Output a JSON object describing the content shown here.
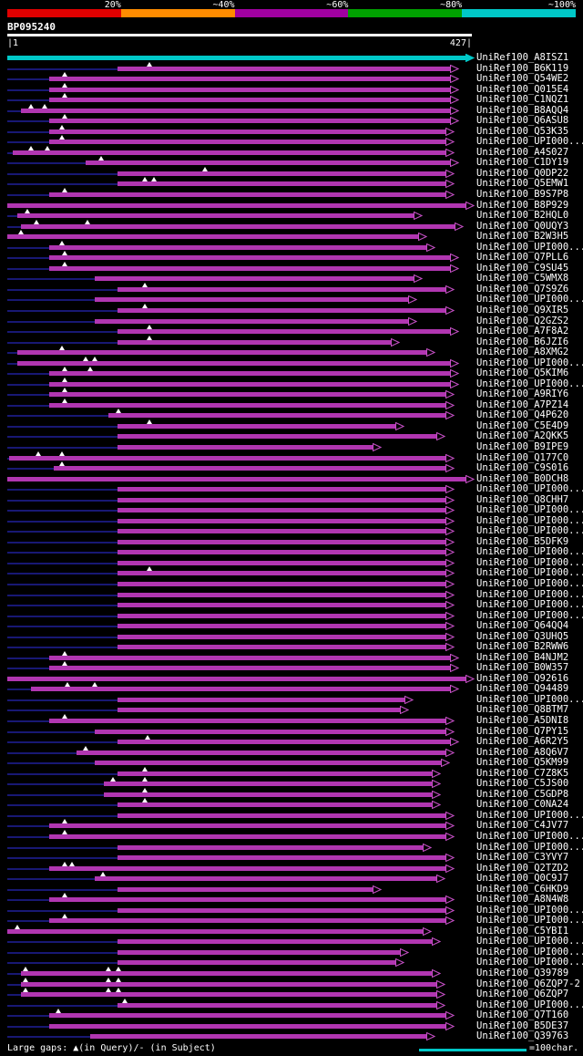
{
  "identity_scale": {
    "labels": [
      "20%",
      "~40%",
      "~60%",
      "~80%",
      "~100%"
    ],
    "colors": [
      "#e00000",
      "#ff8c00",
      "#a000a0",
      "#00a000",
      "#00c8c8"
    ]
  },
  "ruler": {
    "left": "|1",
    "right": "427|"
  },
  "footer": {
    "gaps": "Large gaps: ▲(in Query)/- (in Subject)",
    "scale": "=100char.",
    "scale_chars": 100
  },
  "colors": {
    "background": "#000000",
    "hit": "#b136b1",
    "hit_arrow_stroke": "#c44fc4",
    "query": "#00c8c8",
    "flank": "#181874",
    "text": "#ffffff"
  },
  "chart_data": {
    "type": "bar",
    "subtype": "sequence-alignment-overview",
    "title": "BP095240",
    "xlabel": "query position (characters)",
    "xlim": [
      1,
      427
    ],
    "query": {
      "label": "UniRef100_A8ISZ1",
      "start": 1,
      "end": 427
    },
    "hits": [
      {
        "label": "UniRef100_B6K119",
        "start": 103,
        "end": 413,
        "gaps": [
          133
        ]
      },
      {
        "label": "UniRef100_Q54WE2",
        "start": 40,
        "end": 413,
        "gaps": [
          54
        ]
      },
      {
        "label": "UniRef100_Q015E4",
        "start": 40,
        "end": 413,
        "gaps": [
          54
        ]
      },
      {
        "label": "UniRef100_C1NQZ1",
        "start": 40,
        "end": 413,
        "gaps": [
          54
        ]
      },
      {
        "label": "UniRef100_B8AQQ4",
        "start": 14,
        "end": 413,
        "gaps": [
          23,
          36
        ]
      },
      {
        "label": "UniRef100_Q6ASU8",
        "start": 40,
        "end": 413,
        "gaps": [
          54
        ]
      },
      {
        "label": "UniRef100_Q53K35",
        "start": 40,
        "end": 408,
        "gaps": [
          52
        ]
      },
      {
        "label": "UniRef100_UPI000...",
        "start": 40,
        "end": 408,
        "gaps": [
          52
        ]
      },
      {
        "label": "UniRef100_A4S027",
        "start": 6,
        "end": 408,
        "gaps": [
          23,
          38
        ]
      },
      {
        "label": "UniRef100_C1DY19",
        "start": 74,
        "end": 413,
        "gaps": [
          88
        ]
      },
      {
        "label": "UniRef100_Q0DP22",
        "start": 103,
        "end": 408,
        "gaps": [
          184
        ]
      },
      {
        "label": "UniRef100_Q5EMW1",
        "start": 103,
        "end": 408,
        "gaps": [
          129,
          137
        ]
      },
      {
        "label": "UniRef100_B9S7P8",
        "start": 40,
        "end": 408,
        "gaps": [
          54
        ]
      },
      {
        "label": "UniRef100_B8P929",
        "start": 1,
        "end": 427,
        "gaps": []
      },
      {
        "label": "UniRef100_B2HQL0",
        "start": 10,
        "end": 379,
        "gaps": [
          20
        ]
      },
      {
        "label": "UniRef100_Q0UQY3",
        "start": 14,
        "end": 417,
        "gaps": [
          28,
          75
        ]
      },
      {
        "label": "UniRef100_B2W3H5",
        "start": 1,
        "end": 383,
        "gaps": [
          14
        ]
      },
      {
        "label": "UniRef100_UPI000...",
        "start": 40,
        "end": 391,
        "gaps": [
          52
        ]
      },
      {
        "label": "UniRef100_Q7PLL6",
        "start": 40,
        "end": 413,
        "gaps": [
          54
        ]
      },
      {
        "label": "UniRef100_C9SU45",
        "start": 40,
        "end": 413,
        "gaps": [
          54
        ]
      },
      {
        "label": "UniRef100_C5WMX8",
        "start": 82,
        "end": 379,
        "gaps": []
      },
      {
        "label": "UniRef100_Q7S9Z6",
        "start": 103,
        "end": 408,
        "gaps": [
          129
        ]
      },
      {
        "label": "UniRef100_UPI000...",
        "start": 82,
        "end": 374,
        "gaps": []
      },
      {
        "label": "UniRef100_Q9XIR5",
        "start": 103,
        "end": 408,
        "gaps": [
          129
        ]
      },
      {
        "label": "UniRef100_Q2GZS2",
        "start": 82,
        "end": 374,
        "gaps": []
      },
      {
        "label": "UniRef100_A7F8A2",
        "start": 103,
        "end": 413,
        "gaps": [
          133
        ]
      },
      {
        "label": "UniRef100_B6JZI6",
        "start": 103,
        "end": 358,
        "gaps": [
          133
        ]
      },
      {
        "label": "UniRef100_A8XMG2",
        "start": 10,
        "end": 391,
        "gaps": [
          52
        ]
      },
      {
        "label": "UniRef100_UPI000...",
        "start": 10,
        "end": 413,
        "gaps": [
          74,
          82
        ]
      },
      {
        "label": "UniRef100_Q5KIM6",
        "start": 40,
        "end": 413,
        "gaps": [
          54,
          78
        ]
      },
      {
        "label": "UniRef100_UPI000...",
        "start": 40,
        "end": 413,
        "gaps": [
          54
        ]
      },
      {
        "label": "UniRef100_A9RIY6",
        "start": 40,
        "end": 408,
        "gaps": [
          54
        ]
      },
      {
        "label": "UniRef100_A7PZ14",
        "start": 40,
        "end": 408,
        "gaps": [
          54
        ]
      },
      {
        "label": "UniRef100_Q4P620",
        "start": 95,
        "end": 408,
        "gaps": [
          104
        ]
      },
      {
        "label": "UniRef100_C5E4D9",
        "start": 103,
        "end": 362,
        "gaps": [
          133
        ]
      },
      {
        "label": "UniRef100_A2QKK5",
        "start": 103,
        "end": 400,
        "gaps": []
      },
      {
        "label": "UniRef100_B9IPE9",
        "start": 103,
        "end": 341,
        "gaps": []
      },
      {
        "label": "UniRef100_Q177C0",
        "start": 3,
        "end": 408,
        "gaps": [
          30,
          52
        ]
      },
      {
        "label": "UniRef100_C9S016",
        "start": 44,
        "end": 408,
        "gaps": [
          52
        ]
      },
      {
        "label": "UniRef100_B0DCH8",
        "start": 1,
        "end": 427,
        "gaps": []
      },
      {
        "label": "UniRef100_UPI000...",
        "start": 103,
        "end": 408,
        "gaps": []
      },
      {
        "label": "UniRef100_Q8CHH7",
        "start": 103,
        "end": 408,
        "gaps": []
      },
      {
        "label": "UniRef100_UPI000...",
        "start": 103,
        "end": 408,
        "gaps": []
      },
      {
        "label": "UniRef100_UPI000...",
        "start": 103,
        "end": 408,
        "gaps": []
      },
      {
        "label": "UniRef100_UPI000...",
        "start": 103,
        "end": 408,
        "gaps": []
      },
      {
        "label": "UniRef100_B5DFK9",
        "start": 103,
        "end": 408,
        "gaps": []
      },
      {
        "label": "UniRef100_UPI000...",
        "start": 103,
        "end": 408,
        "gaps": []
      },
      {
        "label": "UniRef100_UPI000...",
        "start": 103,
        "end": 408,
        "gaps": []
      },
      {
        "label": "UniRef100_UPI000...",
        "start": 103,
        "end": 408,
        "gaps": [
          133
        ]
      },
      {
        "label": "UniRef100_UPI000...",
        "start": 103,
        "end": 408,
        "gaps": []
      },
      {
        "label": "UniRef100_UPI000...",
        "start": 103,
        "end": 408,
        "gaps": []
      },
      {
        "label": "UniRef100_UPI000...",
        "start": 103,
        "end": 408,
        "gaps": []
      },
      {
        "label": "UniRef100_UPI000...",
        "start": 103,
        "end": 408,
        "gaps": []
      },
      {
        "label": "UniRef100_Q64QQ4",
        "start": 103,
        "end": 408,
        "gaps": []
      },
      {
        "label": "UniRef100_Q3UHQ5",
        "start": 103,
        "end": 408,
        "gaps": []
      },
      {
        "label": "UniRef100_B2RWW6",
        "start": 103,
        "end": 408,
        "gaps": []
      },
      {
        "label": "UniRef100_B4NJM2",
        "start": 40,
        "end": 413,
        "gaps": [
          54
        ]
      },
      {
        "label": "UniRef100_B0W357",
        "start": 40,
        "end": 413,
        "gaps": [
          54
        ]
      },
      {
        "label": "UniRef100_Q92616",
        "start": 1,
        "end": 427,
        "gaps": []
      },
      {
        "label": "UniRef100_Q94489",
        "start": 23,
        "end": 413,
        "gaps": [
          57,
          82
        ]
      },
      {
        "label": "UniRef100_UPI000...",
        "start": 103,
        "end": 370,
        "gaps": []
      },
      {
        "label": "UniRef100_Q8BTM7",
        "start": 103,
        "end": 366,
        "gaps": []
      },
      {
        "label": "UniRef100_A5DNI8",
        "start": 40,
        "end": 408,
        "gaps": [
          54
        ]
      },
      {
        "label": "UniRef100_Q7PY15",
        "start": 82,
        "end": 408,
        "gaps": []
      },
      {
        "label": "UniRef100_A6R2Y5",
        "start": 103,
        "end": 413,
        "gaps": [
          131
        ]
      },
      {
        "label": "UniRef100_A8Q6V7",
        "start": 65,
        "end": 408,
        "gaps": [
          74
        ]
      },
      {
        "label": "UniRef100_Q5KM99",
        "start": 82,
        "end": 404,
        "gaps": []
      },
      {
        "label": "UniRef100_C7Z8K5",
        "start": 103,
        "end": 396,
        "gaps": [
          129
        ]
      },
      {
        "label": "UniRef100_C5JS00",
        "start": 91,
        "end": 396,
        "gaps": [
          99,
          129
        ]
      },
      {
        "label": "UniRef100_C5GDP8",
        "start": 91,
        "end": 396,
        "gaps": [
          129
        ]
      },
      {
        "label": "UniRef100_C0NA24",
        "start": 103,
        "end": 396,
        "gaps": [
          129
        ]
      },
      {
        "label": "UniRef100_UPI000...",
        "start": 103,
        "end": 408,
        "gaps": []
      },
      {
        "label": "UniRef100_C4JV77",
        "start": 40,
        "end": 408,
        "gaps": [
          54
        ]
      },
      {
        "label": "UniRef100_UPI000...",
        "start": 40,
        "end": 408,
        "gaps": [
          54
        ]
      },
      {
        "label": "UniRef100_UPI000...",
        "start": 103,
        "end": 387,
        "gaps": []
      },
      {
        "label": "UniRef100_C3YVY7",
        "start": 103,
        "end": 408,
        "gaps": []
      },
      {
        "label": "UniRef100_Q2TZD2",
        "start": 40,
        "end": 408,
        "gaps": [
          54,
          61
        ]
      },
      {
        "label": "UniRef100_Q0C9J7",
        "start": 82,
        "end": 400,
        "gaps": [
          90
        ]
      },
      {
        "label": "UniRef100_C6HKD9",
        "start": 103,
        "end": 341,
        "gaps": []
      },
      {
        "label": "UniRef100_A8N4W8",
        "start": 40,
        "end": 408,
        "gaps": [
          54
        ]
      },
      {
        "label": "UniRef100_UPI000...",
        "start": 103,
        "end": 408,
        "gaps": []
      },
      {
        "label": "UniRef100_UPI000...",
        "start": 40,
        "end": 408,
        "gaps": [
          54
        ]
      },
      {
        "label": "UniRef100_C5YBI1",
        "start": 1,
        "end": 387,
        "gaps": [
          10
        ]
      },
      {
        "label": "UniRef100_UPI000...",
        "start": 103,
        "end": 396,
        "gaps": []
      },
      {
        "label": "UniRef100_UPI000...",
        "start": 103,
        "end": 366,
        "gaps": []
      },
      {
        "label": "UniRef100_UPI000...",
        "start": 103,
        "end": 362,
        "gaps": []
      },
      {
        "label": "UniRef100_Q39789",
        "start": 14,
        "end": 396,
        "gaps": [
          18,
          95,
          104
        ]
      },
      {
        "label": "UniRef100_Q6ZQP7-2",
        "start": 14,
        "end": 400,
        "gaps": [
          18,
          95,
          104
        ]
      },
      {
        "label": "UniRef100_Q6ZQP7",
        "start": 14,
        "end": 400,
        "gaps": [
          18,
          95,
          104
        ]
      },
      {
        "label": "UniRef100_UPI000...",
        "start": 103,
        "end": 400,
        "gaps": [
          110
        ]
      },
      {
        "label": "UniRef100_Q7T160",
        "start": 40,
        "end": 408,
        "gaps": [
          48
        ]
      },
      {
        "label": "UniRef100_B5DE37",
        "start": 40,
        "end": 408,
        "gaps": []
      },
      {
        "label": "UniRef100_Q39763",
        "start": 78,
        "end": 391,
        "gaps": []
      }
    ]
  }
}
